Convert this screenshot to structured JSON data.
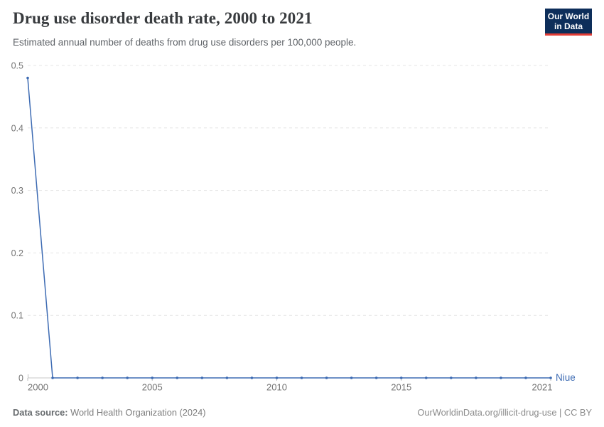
{
  "header": {
    "title": "Drug use disorder death rate, 2000 to 2021",
    "subtitle": "Estimated annual number of deaths from drug use disorders per 100,000 people.",
    "logo": {
      "line1": "Our World",
      "line2": "in Data",
      "bg_color": "#0d2e5a",
      "accent_color": "#e23d36"
    }
  },
  "chart_data": {
    "type": "line",
    "title": "Drug use disorder death rate, 2000 to 2021",
    "xlabel": "",
    "ylabel": "",
    "x": [
      2000,
      2001,
      2002,
      2003,
      2004,
      2005,
      2006,
      2007,
      2008,
      2009,
      2010,
      2011,
      2012,
      2013,
      2014,
      2015,
      2016,
      2017,
      2018,
      2019,
      2020,
      2021
    ],
    "series": [
      {
        "name": "Niue",
        "color": "#3d6bb3",
        "values": [
          0.48,
          0,
          0,
          0,
          0,
          0,
          0,
          0,
          0,
          0,
          0,
          0,
          0,
          0,
          0,
          0,
          0,
          0,
          0,
          0,
          0,
          0
        ]
      }
    ],
    "xticks": [
      2000,
      2005,
      2010,
      2015,
      2021
    ],
    "yticks": [
      0,
      0.1,
      0.2,
      0.3,
      0.4,
      0.5
    ],
    "xlim": [
      2000,
      2021
    ],
    "ylim": [
      0,
      0.5
    ],
    "grid": "horizontal-dashed",
    "legend_position": "line-end-label"
  },
  "footer": {
    "source_label": "Data source:",
    "source_value": "World Health Organization (2024)",
    "attribution": "OurWorldinData.org/illicit-drug-use | CC BY"
  },
  "colors": {
    "line": "#3d6bb3",
    "grid": "#e4e4e4",
    "axis": "#c9c9c9",
    "tick": "#bdbdbd",
    "tick_label": "#747474"
  }
}
